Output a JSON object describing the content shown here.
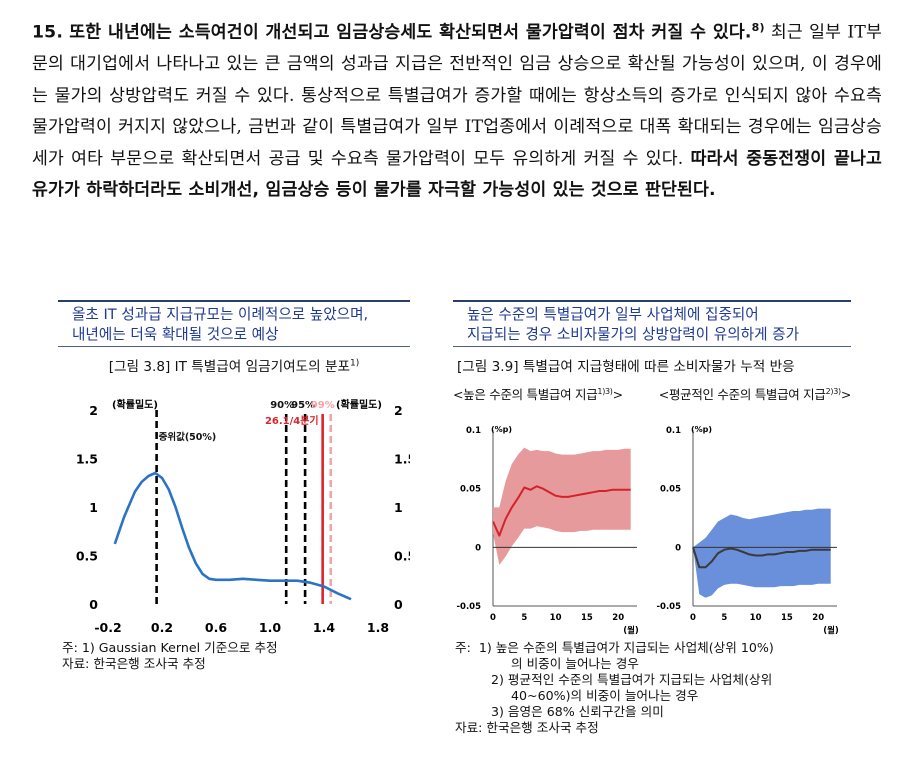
{
  "paragraph": {
    "number": "15.",
    "heading_bold": "또한 내년에는 소득여건이 개선되고 임금상승세도 확산되면서 물가압력이 점차 커질 수 있다.",
    "footnote_mark": "8)",
    "body": " 최근 일부 IT부문의 대기업에서 나타나고 있는 큰 금액의 성과급 지급은 전반적인 임금 상승으로 확산될 가능성이 있으며, 이 경우에는 물가의 상방압력도 커질 수 있다. 통상적으로 특별급여가 증가할 때에는 항상소득의 증가로 인식되지 않아 수요측 물가압력이 커지지 않았으나, 금번과 같이 특별급여가 일부 IT업종에서 이례적으로 대폭 확대되는 경우에는 임금상승세가 여타 부문으로 확산되면서 공급 및 수요측 물가압력이 모두 유의하게 커질 수 있다.",
    "conclusion_bold": "따라서 중동전쟁이 끝나고 유가가 하락하더라도 소비개선, 임금상승 등이 물가를 자극할 가능성이 있는 것으로 판단된다."
  },
  "left_panel": {
    "headline_line1": "올초 IT 성과급 지급규모는 이례적으로 높았으며,",
    "headline_line2": "내년에는 더욱 확대될 것으로 예상",
    "figure_title": "[그림 3.8] IT 특별급여 임금기여도의 분포",
    "figure_title_sup": "1)",
    "note1": "주: 1) Gaussian Kernel 기준으로 추정",
    "source": "자료: 한국은행 조사국 추정"
  },
  "right_panel": {
    "headline_line1": "높은 수준의 특별급여가 일부 사업체에 집중되어",
    "headline_line2": "지급되는 경우 소비자물가의 상방압력이 유의하게 증가",
    "figure_title": "[그림 3.9] 특별급여 지급형태에 따른 소비자물가 누적 반응",
    "sub_left": "<높은 수준의 특별급여 지급",
    "sub_left_sup": "1)3)",
    "sub_left_end": ">",
    "sub_right": "<평균적인 수준의 특별급여 지급",
    "sub_right_sup": "2)3)",
    "sub_right_end": ">",
    "note_prefix": "주:",
    "note1": "1) 높은 수준의 특별급여가 지급되는 사업체(상위 10%)",
    "note1b": "의 비중이 늘어나는 경우",
    "note2": "2) 평균적인 수준의 특별급여가 지급되는 사업체(상위",
    "note2b": "40~60%)의 비중이 늘어나는 경우",
    "note3": "3) 음영은 68% 신뢰구간을 의미",
    "source": "자료: 한국은행 조사국 추정"
  },
  "chart_data": [
    {
      "type": "line",
      "id": "fig3_8",
      "title": "",
      "ylabel_left": "(확률밀도)",
      "ylabel_right": "(확률밀도)",
      "x_ticks": [
        "-0.2",
        "0.2",
        "0.6",
        "1.0",
        "1.4",
        "1.8"
      ],
      "y_ticks": [
        "0",
        "0.5",
        "1",
        "1.5",
        "2"
      ],
      "xlim": [
        -0.2,
        1.8
      ],
      "ylim": [
        0,
        2
      ],
      "series": [
        {
          "name": "",
          "color": "#2b74c4",
          "x": [
            -0.15,
            -0.08,
            0.0,
            0.05,
            0.1,
            0.15,
            0.2,
            0.25,
            0.3,
            0.35,
            0.4,
            0.45,
            0.5,
            0.55,
            0.6,
            0.7,
            0.8,
            0.9,
            1.0,
            1.1,
            1.2,
            1.3,
            1.4,
            1.5,
            1.6
          ],
          "y": [
            0.62,
            0.9,
            1.16,
            1.26,
            1.32,
            1.35,
            1.3,
            1.18,
            1.0,
            0.78,
            0.58,
            0.42,
            0.31,
            0.26,
            0.25,
            0.25,
            0.26,
            0.25,
            0.24,
            0.24,
            0.24,
            0.22,
            0.18,
            0.11,
            0.05
          ]
        }
      ],
      "vlines": [
        {
          "x": 0.16,
          "label": "중위값(50%)",
          "style": "dashed",
          "color": "#000000"
        },
        {
          "x": 1.12,
          "label": "90%",
          "style": "dashed",
          "color": "#000000"
        },
        {
          "x": 1.26,
          "label": "95%",
          "style": "dashed",
          "color": "#000000"
        },
        {
          "x": 1.39,
          "label": "26.1/4분기",
          "style": "solid",
          "color": "#d9262c"
        },
        {
          "x": 1.45,
          "label": "99%",
          "style": "dashed",
          "color": "#f2a5a8"
        }
      ]
    },
    {
      "type": "area",
      "id": "fig3_9_left",
      "unit_label": "(%p)",
      "x_unit": "(월)",
      "x_ticks": [
        "0",
        "5",
        "10",
        "15",
        "20"
      ],
      "y_ticks": [
        "0.1",
        "0.05",
        "0",
        "-0.05"
      ],
      "xlim": [
        0,
        23
      ],
      "ylim": [
        -0.05,
        0.1
      ],
      "band_color": "#e79a9c",
      "line_color": "#d5212a",
      "x": [
        0,
        1,
        2,
        3,
        4,
        5,
        6,
        7,
        8,
        9,
        10,
        11,
        12,
        13,
        14,
        15,
        16,
        17,
        18,
        19,
        20,
        21,
        22
      ],
      "mean": [
        0.022,
        0.01,
        0.024,
        0.034,
        0.042,
        0.051,
        0.049,
        0.052,
        0.05,
        0.047,
        0.044,
        0.043,
        0.043,
        0.044,
        0.045,
        0.046,
        0.047,
        0.048,
        0.048,
        0.049,
        0.049,
        0.049,
        0.049
      ],
      "lower": [
        0.012,
        -0.015,
        -0.008,
        0.001,
        0.008,
        0.016,
        0.016,
        0.018,
        0.017,
        0.016,
        0.014,
        0.013,
        0.013,
        0.013,
        0.014,
        0.014,
        0.015,
        0.015,
        0.015,
        0.015,
        0.015,
        0.015,
        0.015
      ],
      "upper": [
        0.034,
        0.034,
        0.056,
        0.071,
        0.079,
        0.085,
        0.082,
        0.083,
        0.082,
        0.082,
        0.08,
        0.079,
        0.079,
        0.079,
        0.08,
        0.081,
        0.082,
        0.082,
        0.083,
        0.083,
        0.083,
        0.084,
        0.084
      ]
    },
    {
      "type": "area",
      "id": "fig3_9_right",
      "unit_label": "(%p)",
      "x_unit": "(월)",
      "x_ticks": [
        "0",
        "5",
        "10",
        "15",
        "20"
      ],
      "y_ticks": [
        "0.1",
        "0.05",
        "0",
        "-0.05"
      ],
      "xlim": [
        0,
        23
      ],
      "ylim": [
        -0.05,
        0.1
      ],
      "band_color": "#6a8fdb",
      "line_color": "#3a3a3a",
      "x": [
        0,
        1,
        2,
        3,
        4,
        5,
        6,
        7,
        8,
        9,
        10,
        11,
        12,
        13,
        14,
        15,
        16,
        17,
        18,
        19,
        20,
        21,
        22
      ],
      "mean": [
        0.0,
        -0.017,
        -0.017,
        -0.012,
        -0.005,
        -0.002,
        -0.001,
        -0.002,
        -0.004,
        -0.006,
        -0.007,
        -0.007,
        -0.006,
        -0.006,
        -0.005,
        -0.004,
        -0.004,
        -0.003,
        -0.003,
        -0.002,
        -0.002,
        -0.002,
        -0.002
      ],
      "lower": [
        0.0,
        -0.04,
        -0.043,
        -0.041,
        -0.035,
        -0.032,
        -0.031,
        -0.031,
        -0.032,
        -0.033,
        -0.034,
        -0.034,
        -0.034,
        -0.034,
        -0.033,
        -0.033,
        -0.033,
        -0.032,
        -0.032,
        -0.032,
        -0.031,
        -0.031,
        -0.031
      ],
      "upper": [
        0.0,
        0.004,
        0.008,
        0.015,
        0.022,
        0.025,
        0.028,
        0.027,
        0.025,
        0.024,
        0.025,
        0.026,
        0.027,
        0.028,
        0.029,
        0.03,
        0.031,
        0.031,
        0.032,
        0.032,
        0.033,
        0.033,
        0.033
      ]
    }
  ]
}
